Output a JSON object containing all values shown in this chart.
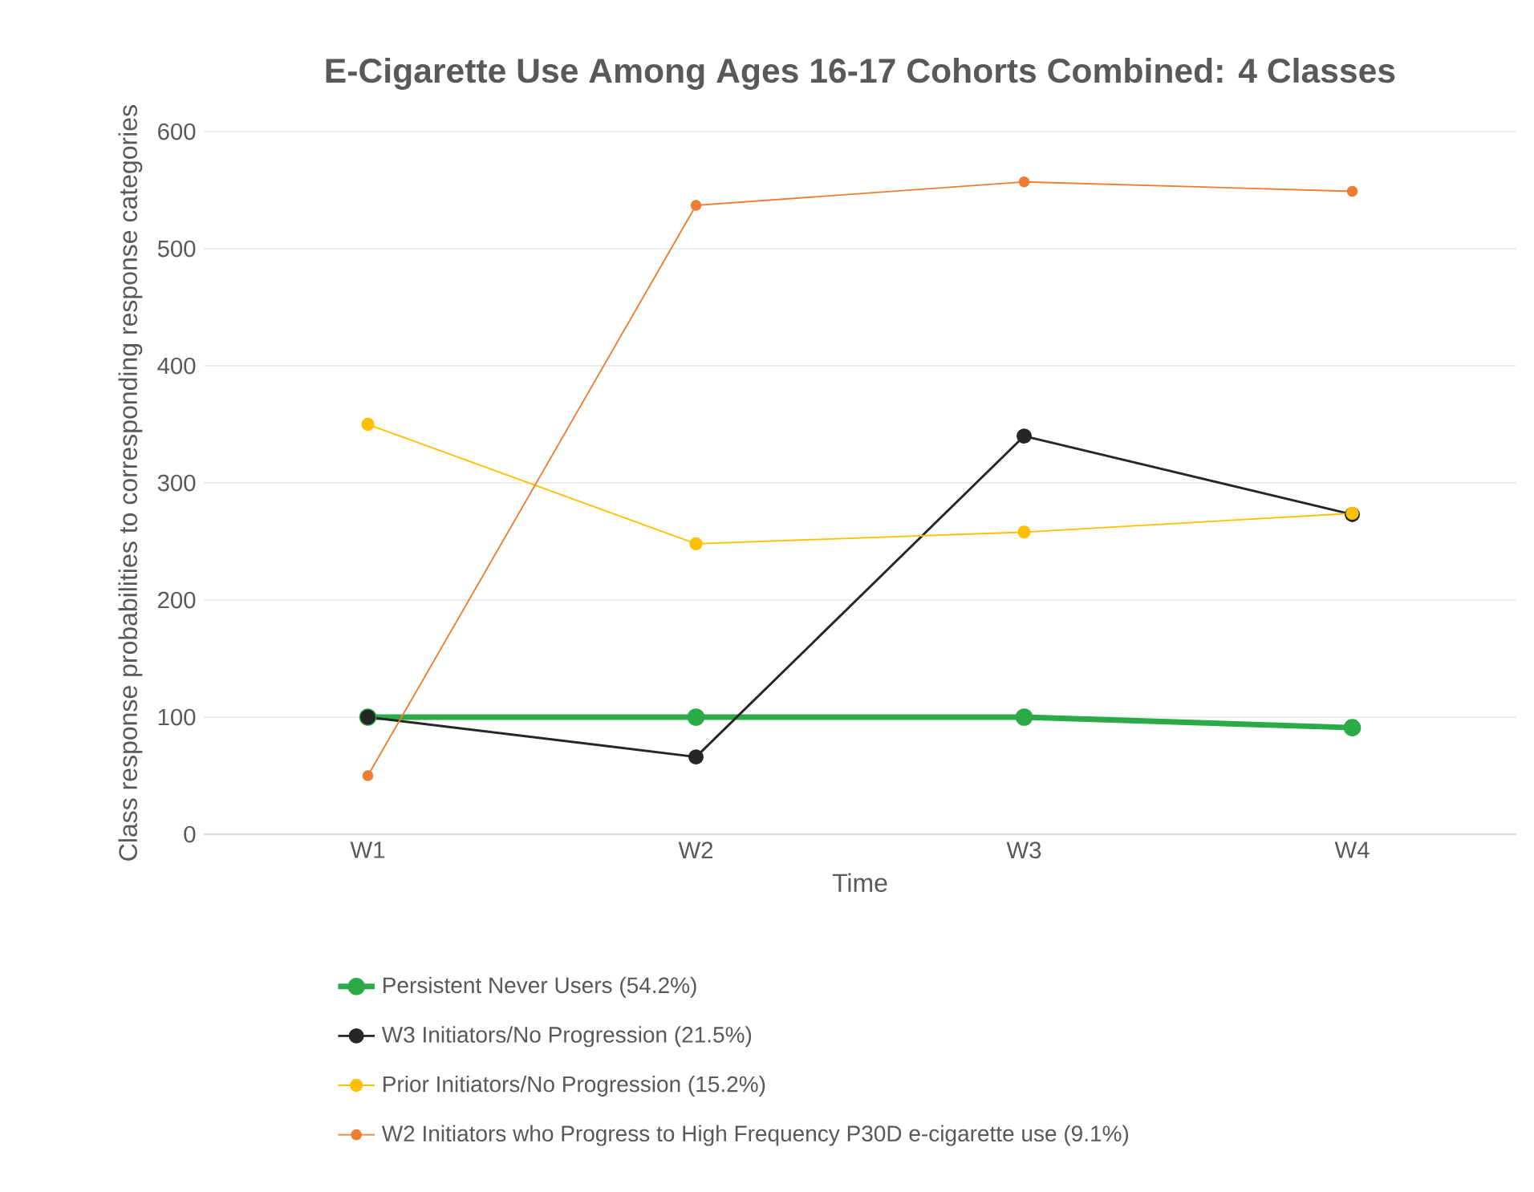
{
  "chart_data": {
    "type": "line",
    "title": "E-Cigarette Use Among Ages 16-17 Cohorts Combined: 4 Classes",
    "xlabel": "Time",
    "ylabel": "Class response probabilities to corresponding response categories",
    "categories": [
      "W1",
      "W2",
      "W3",
      "W4"
    ],
    "series": [
      {
        "name": "Persistent Never Users (54.2%)",
        "color": "#2aab47",
        "values": [
          100,
          100,
          100,
          91
        ]
      },
      {
        "name": "W3 Initiators/No Progression (21.5%)",
        "color": "#262626",
        "values": [
          100,
          66,
          340,
          273
        ]
      },
      {
        "name": "Prior Initiators/No Progression (15.2%)",
        "color": "#ffc000",
        "values": [
          350,
          248,
          258,
          274
        ]
      },
      {
        "name": "W2 Initiators who Progress  to High Frequency P30D e-cigarette use (9.1%)",
        "color": "#ed7d31",
        "values": [
          50,
          537,
          557,
          549
        ]
      }
    ],
    "ylim": [
      0,
      600
    ],
    "yticks": [
      0,
      100,
      200,
      300,
      400,
      500,
      600
    ],
    "grid": "y",
    "legend": "bottom",
    "marker": "circle",
    "line_style": "solid"
  }
}
